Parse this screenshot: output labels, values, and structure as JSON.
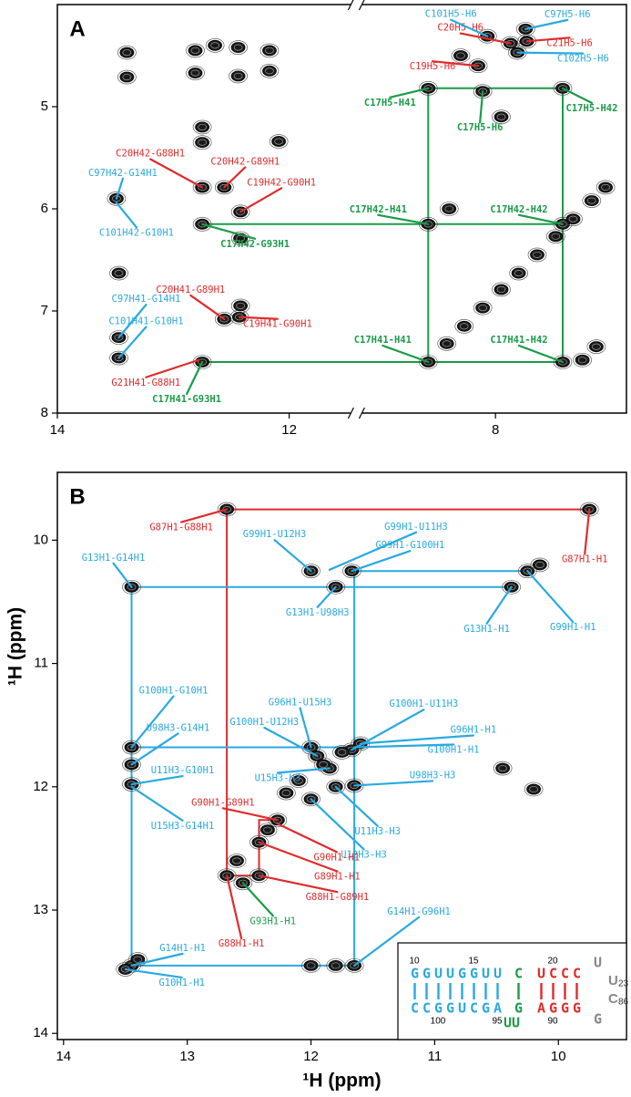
{
  "chart_data": [
    {
      "type": "scatter",
      "label": "A",
      "xlim": [
        [
          14,
          11.42
        ],
        [
          9.2,
          6.87
        ]
      ],
      "xticks": [
        14,
        12,
        8
      ],
      "ylim": [
        4.0,
        8.0
      ],
      "yticks": [
        5,
        6,
        7,
        8
      ],
      "x": [
        8.58,
        8.11,
        7.42,
        8.58,
        7.42,
        12.75,
        8.58,
        7.42,
        12.75,
        7.87,
        7.73,
        8.15,
        12.75,
        12.56,
        12.42,
        12.56,
        12.43,
        8.07,
        7.74,
        7.81,
        13.49,
        13.47,
        13.47,
        8.42,
        8.27,
        8.11,
        7.95,
        7.8,
        7.64,
        7.48,
        7.33,
        7.17,
        7.05,
        7.25,
        7.13,
        13.4,
        13.4,
        12.81,
        12.64,
        12.44,
        12.17,
        12.81,
        12.44,
        12.17,
        12.09,
        12.42,
        13.47,
        12.75,
        12.42,
        8.3,
        7.95,
        8.4,
        12.75
      ],
      "y": [
        4.82,
        4.85,
        4.82,
        6.15,
        6.15,
        6.15,
        7.5,
        7.5,
        7.5,
        4.38,
        4.36,
        4.6,
        5.79,
        5.79,
        6.03,
        7.08,
        7.06,
        4.31,
        4.24,
        4.47,
        5.9,
        7.26,
        7.46,
        7.32,
        7.15,
        6.97,
        6.79,
        6.63,
        6.45,
        6.27,
        6.1,
        5.92,
        5.79,
        7.48,
        7.35,
        4.47,
        4.71,
        4.45,
        4.4,
        4.42,
        4.45,
        4.67,
        4.7,
        4.65,
        5.34,
        6.29,
        6.63,
        5.2,
        6.95,
        4.5,
        5.1,
        6.0,
        5.35
      ],
      "lines": [
        {
          "color": "#1a9b48",
          "x": [
            8.58,
            7.42,
            7.42,
            8.58,
            8.58
          ],
          "y": [
            4.82,
            4.82,
            7.5,
            7.5,
            4.82
          ]
        },
        {
          "color": "#1a9b48",
          "x": [
            12.75,
            7.42
          ],
          "y": [
            6.15,
            6.15
          ]
        },
        {
          "color": "#1a9b48",
          "x": [
            12.75,
            8.58
          ],
          "y": [
            7.5,
            7.5
          ]
        }
      ],
      "annotations": [
        {
          "text": "C17H5-H41",
          "color": "#1a9b48",
          "bold": true,
          "x": 8.58,
          "y": 4.82
        },
        {
          "text": "C17H5-H6",
          "color": "#1a9b48",
          "bold": true,
          "x": 8.11,
          "y": 4.85
        },
        {
          "text": "C17H5-H42",
          "color": "#1a9b48",
          "bold": true,
          "x": 7.42,
          "y": 4.82
        },
        {
          "text": "C17H42-H41",
          "color": "#1a9b48",
          "bold": true,
          "x": 8.58,
          "y": 6.15
        },
        {
          "text": "C17H42-H42",
          "color": "#1a9b48",
          "bold": true,
          "x": 7.42,
          "y": 6.15
        },
        {
          "text": "C17H42-G93H1",
          "color": "#1a9b48",
          "bold": true,
          "x": 12.75,
          "y": 6.15
        },
        {
          "text": "C17H41-H41",
          "color": "#1a9b48",
          "bold": true,
          "x": 8.58,
          "y": 7.5
        },
        {
          "text": "C17H41-H42",
          "color": "#1a9b48",
          "bold": true,
          "x": 7.42,
          "y": 7.5
        },
        {
          "text": "C17H41-G93H1",
          "color": "#1a9b48",
          "bold": true,
          "x": 12.75,
          "y": 7.5
        },
        {
          "text": "C20H5-H6",
          "color": "#e02b2b",
          "x": 7.87,
          "y": 4.38
        },
        {
          "text": "C21H5-H6",
          "color": "#e02b2b",
          "x": 7.73,
          "y": 4.36
        },
        {
          "text": "C19H5-H6",
          "color": "#e02b2b",
          "x": 8.15,
          "y": 4.6
        },
        {
          "text": "C20H42-G88H1",
          "color": "#e02b2b",
          "x": 12.75,
          "y": 5.79
        },
        {
          "text": "C20H42-G89H1",
          "color": "#e02b2b",
          "x": 12.56,
          "y": 5.79
        },
        {
          "text": "C19H42-G90H1",
          "color": "#e02b2b",
          "x": 12.42,
          "y": 6.03
        },
        {
          "text": "C20H41-G89H1",
          "color": "#e02b2b",
          "x": 12.56,
          "y": 7.08
        },
        {
          "text": "C19H41-G90H1",
          "color": "#e02b2b",
          "x": 12.43,
          "y": 7.06
        },
        {
          "text": "G21H41-G88H1",
          "color": "#e02b2b",
          "x": 12.78,
          "y": 7.48
        },
        {
          "text": "C101H5-H6",
          "color": "#29a9e0",
          "x": 8.07,
          "y": 4.31
        },
        {
          "text": "C97H5-H6",
          "color": "#29a9e0",
          "x": 7.74,
          "y": 4.24
        },
        {
          "text": "C102H5-H6",
          "color": "#29a9e0",
          "x": 7.81,
          "y": 4.47
        },
        {
          "text": "C97H42-G14H1",
          "color": "#29a9e0",
          "x": 13.49,
          "y": 5.9
        },
        {
          "text": "C101H42-G10H1",
          "color": "#29a9e0",
          "x": 13.49,
          "y": 5.94
        },
        {
          "text": "C97H41-G14H1",
          "color": "#29a9e0",
          "x": 13.47,
          "y": 7.26
        },
        {
          "text": "C101H41-G10H1",
          "color": "#29a9e0",
          "x": 13.47,
          "y": 7.46
        }
      ]
    },
    {
      "type": "scatter",
      "label": "B",
      "xlabel": "¹H (ppm)",
      "ylabel": "¹H (ppm)",
      "xlim": [
        14.05,
        9.45
      ],
      "xticks": [
        14,
        13,
        12,
        11,
        10
      ],
      "ylim": [
        9.45,
        14.05
      ],
      "yticks": [
        10,
        11,
        12,
        13,
        14
      ],
      "x": [
        9.75,
        12.68,
        13.45,
        12.0,
        11.67,
        11.8,
        10.25,
        10.38,
        13.45,
        13.45,
        13.45,
        12.0,
        11.67,
        11.95,
        11.6,
        11.85,
        11.65,
        11.8,
        12.0,
        12.27,
        12.42,
        12.42,
        12.68,
        12.55,
        11.65,
        13.45,
        13.5,
        12.1,
        12.2,
        11.9,
        11.75,
        10.45,
        10.2,
        12.0,
        11.8,
        12.35,
        12.6,
        13.4,
        10.15
      ],
      "y": [
        9.75,
        9.75,
        10.38,
        10.25,
        10.25,
        10.38,
        10.25,
        10.38,
        11.68,
        11.82,
        11.98,
        11.68,
        11.7,
        11.75,
        11.65,
        11.85,
        11.99,
        12.0,
        12.1,
        12.27,
        12.45,
        12.72,
        12.72,
        12.78,
        13.45,
        13.45,
        13.48,
        11.95,
        12.05,
        11.82,
        11.72,
        11.85,
        12.02,
        13.45,
        13.45,
        12.35,
        12.6,
        13.4,
        10.2
      ],
      "lines": [
        {
          "color": "#e02b2b",
          "x": [
            9.75,
            12.68,
            12.68,
            12.42,
            12.42,
            12.27
          ],
          "y": [
            9.75,
            9.75,
            12.72,
            12.72,
            12.27,
            12.27
          ]
        },
        {
          "color": "#29a9e0",
          "x": [
            10.38,
            13.45,
            13.45,
            11.65,
            11.65,
            10.25
          ],
          "y": [
            10.38,
            10.38,
            13.45,
            13.45,
            10.25,
            10.25
          ]
        },
        {
          "color": "#29a9e0",
          "x": [
            13.45,
            11.65
          ],
          "y": [
            11.68,
            11.68
          ]
        }
      ],
      "annotations": [
        {
          "text": "G87H1-G88H1",
          "color": "#e02b2b",
          "x": 12.68,
          "y": 9.75
        },
        {
          "text": "G87H1-H1",
          "color": "#e02b2b",
          "x": 9.75,
          "y": 9.75
        },
        {
          "text": "G13H1-G14H1",
          "color": "#29a9e0",
          "x": 13.45,
          "y": 10.38
        },
        {
          "text": "G99H1-U12H3",
          "color": "#29a9e0",
          "x": 12.0,
          "y": 10.25
        },
        {
          "text": "G99H1-U11H3",
          "color": "#29a9e0",
          "x": 11.85,
          "y": 10.24
        },
        {
          "text": "G99H1-G100H1",
          "color": "#29a9e0",
          "x": 11.67,
          "y": 10.25
        },
        {
          "text": "G13H1-U98H3",
          "color": "#29a9e0",
          "x": 11.8,
          "y": 10.38
        },
        {
          "text": "G99H1-H1",
          "color": "#29a9e0",
          "x": 10.25,
          "y": 10.25
        },
        {
          "text": "G13H1-H1",
          "color": "#29a9e0",
          "x": 10.38,
          "y": 10.38
        },
        {
          "text": "G100H1-G10H1",
          "color": "#29a9e0",
          "x": 13.45,
          "y": 11.68
        },
        {
          "text": "U98H3-G14H1",
          "color": "#29a9e0",
          "x": 13.45,
          "y": 11.82
        },
        {
          "text": "U11H3-G10H1",
          "color": "#29a9e0",
          "x": 13.45,
          "y": 11.98
        },
        {
          "text": "U15H3-G14H1",
          "color": "#29a9e0",
          "x": 13.45,
          "y": 12.0
        },
        {
          "text": "G96H1-U15H3",
          "color": "#29a9e0",
          "x": 12.0,
          "y": 11.68
        },
        {
          "text": "G100H1-U11H3",
          "color": "#29a9e0",
          "x": 11.67,
          "y": 11.7
        },
        {
          "text": "G100H1-U12H3",
          "color": "#29a9e0",
          "x": 11.95,
          "y": 11.75
        },
        {
          "text": "G96H1-H1",
          "color": "#29a9e0",
          "x": 11.6,
          "y": 11.65
        },
        {
          "text": "G100H1-H1",
          "color": "#29a9e0",
          "x": 11.65,
          "y": 11.68
        },
        {
          "text": "U15H3-H3",
          "color": "#29a9e0",
          "x": 11.85,
          "y": 11.85
        },
        {
          "text": "U98H3-H3",
          "color": "#29a9e0",
          "x": 11.65,
          "y": 11.99
        },
        {
          "text": "U11H3-H3",
          "color": "#29a9e0",
          "x": 11.8,
          "y": 12.0
        },
        {
          "text": "U12H3-H3",
          "color": "#29a9e0",
          "x": 12.0,
          "y": 12.1
        },
        {
          "text": "G90H1-G89H1",
          "color": "#e02b2b",
          "x": 12.27,
          "y": 12.27
        },
        {
          "text": "G90H1-H1",
          "color": "#e02b2b",
          "x": 12.27,
          "y": 12.3
        },
        {
          "text": "G89H1-H1",
          "color": "#e02b2b",
          "x": 12.42,
          "y": 12.45
        },
        {
          "text": "G88H1-G89H1",
          "color": "#e02b2b",
          "x": 12.42,
          "y": 12.72
        },
        {
          "text": "G88H1-H1",
          "color": "#e02b2b",
          "x": 12.68,
          "y": 12.72
        },
        {
          "text": "G93H1-H1",
          "color": "#1a9b48",
          "x": 12.55,
          "y": 12.78
        },
        {
          "text": "G14H1-G96H1",
          "color": "#29a9e0",
          "x": 11.65,
          "y": 13.45
        },
        {
          "text": "G14H1-H1",
          "color": "#29a9e0",
          "x": 13.45,
          "y": 13.45
        },
        {
          "text": "G10H1-H1",
          "color": "#29a9e0",
          "x": 13.5,
          "y": 13.48
        }
      ],
      "inset": {
        "top": [
          {
            "text": "GGUUGGUU",
            "color": "#29a9e0"
          },
          {
            "text": "C",
            "color": "#1a9b48"
          },
          {
            "text": "UCCC",
            "color": "#e02b2b"
          },
          {
            "text": "U",
            "color": "#888888"
          }
        ],
        "bottom": [
          {
            "text": "CCGGUCGA",
            "color": "#29a9e0"
          },
          {
            "text": "G",
            "color": "#1a9b48"
          },
          {
            "text": "AGGG",
            "color": "#e02b2b"
          },
          {
            "text": "G",
            "color": "#888888"
          }
        ],
        "bulge": {
          "text": "UU",
          "color": "#1a9b48"
        },
        "loop": [
          {
            "text": "U",
            "sub": "23",
            "color": "#888888"
          },
          {
            "text": "C",
            "sub": "86",
            "color": "#888888"
          }
        ],
        "numbers_top": [
          "10",
          "15",
          "20"
        ],
        "numbers_bottom": [
          "100",
          "95",
          "90"
        ]
      }
    }
  ]
}
